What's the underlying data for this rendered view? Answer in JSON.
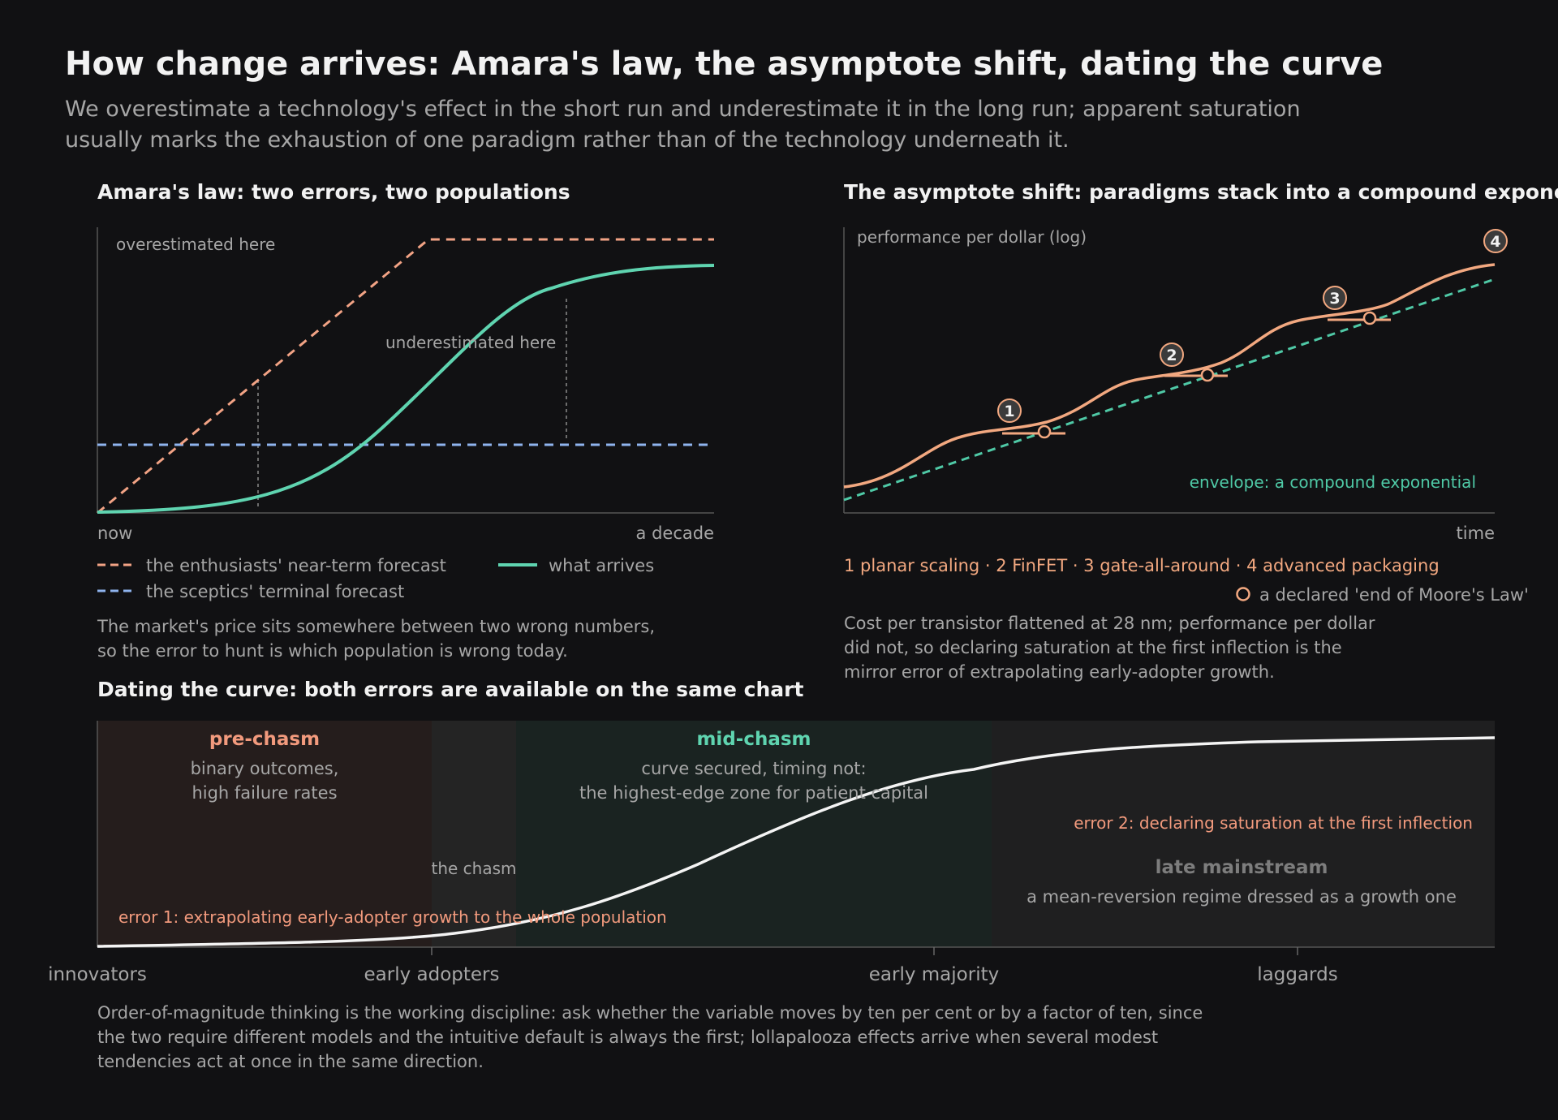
{
  "header": {
    "title": "How change arrives: Amara's law, the asymptote shift, dating the curve",
    "subtitle_line1": "We overestimate a technology's effect in the short run and underestimate it in the long run; apparent saturation",
    "subtitle_line2": "usually marks the exhaustion of one paradigm rather than of the technology underneath it."
  },
  "colors": {
    "forecast": "#f2a385",
    "sceptic": "#8fb4ee",
    "arrives": "#5fd4b0",
    "paradigm": "#f2a880",
    "envelope": "#4fc9a6",
    "prechasm_text": "#f29a7d",
    "midchasm_text": "#5fd4b0",
    "error_text": "#f29a7d",
    "curve": "#f4f4f4",
    "muted": "#a6a6a6"
  },
  "amara": {
    "title": "Amara's law: two errors, two populations",
    "label_over": "overestimated here",
    "label_under": "underestimated here",
    "x_start": "now",
    "x_end": "a decade",
    "legend": {
      "forecast": "the enthusiasts' near-term forecast",
      "sceptic": "the sceptics' terminal forecast",
      "arrives": "what arrives"
    },
    "note_line1": "The market's price sits somewhere between two wrong numbers,",
    "note_line2": "so the error to hunt is which population is wrong today."
  },
  "asymptote": {
    "title": "The asymptote shift: paradigms stack into a compound exponential",
    "y_label": "performance per dollar (log)",
    "x_label": "time",
    "envelope_label": "envelope: a compound exponential",
    "markers": [
      "1",
      "2",
      "3",
      "4"
    ],
    "paradigm_legend": "1 planar scaling · 2 FinFET · 3 gate-all-around · 4 advanced packaging",
    "saturation_legend": "a declared 'end of Moore's Law'",
    "note_line1": "Cost per transistor flattened at 28 nm; performance per dollar",
    "note_line2": "did not, so declaring saturation at the first inflection is the",
    "note_line3": "mirror error of extrapolating early-adopter growth."
  },
  "dating": {
    "title": "Dating the curve: both errors are available on the same chart",
    "prechasm_title": "pre-chasm",
    "prechasm_line1": "binary outcomes,",
    "prechasm_line2": "high failure rates",
    "chasm": "the chasm",
    "midchasm_title": "mid-chasm",
    "midchasm_line1": "curve secured, timing not:",
    "midchasm_line2": "the highest-edge zone for patient capital",
    "late_title": "late mainstream",
    "late_line": "a mean-reversion regime dressed as a growth one",
    "error1": "error 1: extrapolating early-adopter growth to the whole population",
    "error2": "error 2: declaring saturation at the first inflection",
    "axis_labels": [
      "innovators",
      "early adopters",
      "early majority",
      "laggards"
    ],
    "note_line1": "Order-of-magnitude thinking is the working discipline: ask whether the variable moves by ten per cent or by a factor of ten, since",
    "note_line2": "the two require different models and the intuitive default is always the first; lollapalooza effects arrive when several modest",
    "note_line3": "tendencies act at once in the same direction."
  }
}
